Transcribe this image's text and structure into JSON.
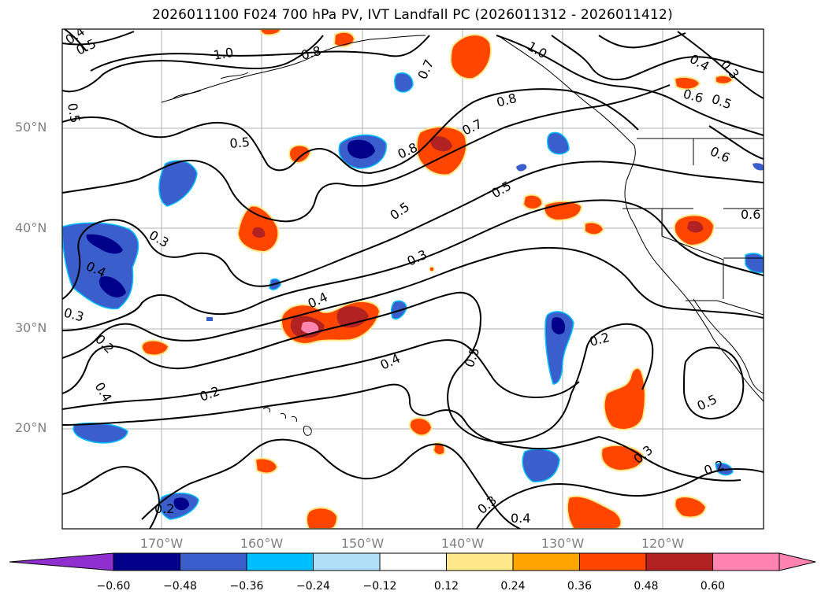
{
  "title": "2026011100 F024 700 hPa PV, IVT Landfall PC (2026011312 - 2026011412)",
  "map": {
    "lat_labels": [
      "50°N",
      "40°N",
      "30°N",
      "20°N"
    ],
    "lon_labels": [
      "170°W",
      "160°W",
      "150°W",
      "140°W",
      "130°W",
      "120°W"
    ],
    "contour_labels": [
      "0.4",
      "0.5",
      "0.5",
      "1.0",
      "0.8",
      "0.7",
      "1.0",
      "0.4",
      "0.3",
      "0.6",
      "0.5",
      "0.5",
      "0.8",
      "0.7",
      "0.8",
      "0.5",
      "0.5",
      "0.3",
      "0.6",
      "0.6",
      "0.3",
      "0.4",
      "0.3",
      "0.2",
      "0.4",
      "0.4",
      "0.5",
      "0.2",
      "0.2",
      "0.4",
      "0.5",
      "0.3",
      "0.2",
      "0.2",
      "0.3",
      "0.4"
    ],
    "colors": {
      "neg_60_plus": "#8f2fd0",
      "neg_48_60": "#00008b",
      "neg_36_48": "#3a5fcd",
      "neg_24_36": "#00bfff",
      "neg_12_24": "#afe0f8",
      "pos_12_24": "#ffe98a",
      "pos_24_36": "#ffa500",
      "pos_36_48": "#ff4500",
      "pos_48_60": "#b22222",
      "pos_60_plus": "#ff85b0"
    }
  },
  "colorbar": {
    "ticks": [
      "−0.60",
      "−0.48",
      "−0.36",
      "−0.24",
      "−0.12",
      "0.12",
      "0.24",
      "0.36",
      "0.48",
      "0.60"
    ],
    "colors": [
      "#8f2fd0",
      "#00008b",
      "#3a5fcd",
      "#00bfff",
      "#afe0f8",
      "#ffffff",
      "#ffe98a",
      "#ffa500",
      "#ff4500",
      "#b22222",
      "#ff85b0"
    ]
  }
}
